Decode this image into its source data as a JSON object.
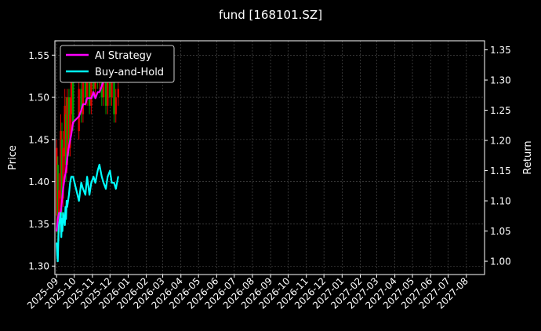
{
  "chart_data": {
    "type": "line",
    "title": "fund [168101.SZ]",
    "ylabel": "Price",
    "y2label": "Return",
    "ylim": [
      1.29,
      1.567
    ],
    "y2lim": [
      0.978,
      1.365
    ],
    "yticks": [
      "1.30",
      "1.35",
      "1.40",
      "1.45",
      "1.50",
      "1.55"
    ],
    "y2ticks": [
      "1.00",
      "1.05",
      "1.10",
      "1.15",
      "1.20",
      "1.25",
      "1.30",
      "1.35"
    ],
    "xlim": [
      "2025-08-29",
      "2027-09-01"
    ],
    "xticks": [
      "2025-09",
      "2025-10",
      "2025-11",
      "2025-12",
      "2026-01",
      "2026-02",
      "2026-03",
      "2026-04",
      "2026-05",
      "2026-06",
      "2026-07",
      "2026-08",
      "2026-09",
      "2026-10",
      "2026-11",
      "2026-12",
      "2027-01",
      "2027-02",
      "2027-03",
      "2027-04",
      "2027-05",
      "2027-06",
      "2027-07",
      "2027-08"
    ],
    "grid": true,
    "legend_position": "top-left",
    "candles": [
      {
        "date": "2025-09-01",
        "open": 1.36,
        "close": 1.44,
        "high": 1.45,
        "low": 1.34
      },
      {
        "date": "2025-09-03",
        "open": 1.42,
        "close": 1.34,
        "high": 1.43,
        "low": 1.32
      },
      {
        "date": "2025-09-05",
        "open": 1.34,
        "close": 1.39,
        "high": 1.41,
        "low": 1.33
      },
      {
        "date": "2025-09-08",
        "open": 1.38,
        "close": 1.46,
        "high": 1.48,
        "low": 1.37
      },
      {
        "date": "2025-09-10",
        "open": 1.45,
        "close": 1.38,
        "high": 1.47,
        "low": 1.36
      },
      {
        "date": "2025-09-12",
        "open": 1.38,
        "close": 1.44,
        "high": 1.46,
        "low": 1.37
      },
      {
        "date": "2025-09-15",
        "open": 1.43,
        "close": 1.49,
        "high": 1.51,
        "low": 1.41
      },
      {
        "date": "2025-09-17",
        "open": 1.48,
        "close": 1.42,
        "high": 1.5,
        "low": 1.4
      },
      {
        "date": "2025-09-19",
        "open": 1.42,
        "close": 1.5,
        "high": 1.51,
        "low": 1.41
      },
      {
        "date": "2025-09-22",
        "open": 1.5,
        "close": 1.44,
        "high": 1.51,
        "low": 1.43
      },
      {
        "date": "2025-09-24",
        "open": 1.44,
        "close": 1.48,
        "high": 1.5,
        "low": 1.43
      },
      {
        "date": "2025-09-26",
        "open": 1.48,
        "close": 1.52,
        "high": 1.53,
        "low": 1.46
      },
      {
        "date": "2025-09-29",
        "open": 1.52,
        "close": 1.47,
        "high": 1.53,
        "low": 1.46
      },
      {
        "date": "2025-10-09",
        "open": 1.46,
        "close": 1.51,
        "high": 1.52,
        "low": 1.45
      },
      {
        "date": "2025-10-13",
        "open": 1.51,
        "close": 1.48,
        "high": 1.52,
        "low": 1.47
      },
      {
        "date": "2025-10-16",
        "open": 1.48,
        "close": 1.53,
        "high": 1.54,
        "low": 1.47
      },
      {
        "date": "2025-10-20",
        "open": 1.53,
        "close": 1.5,
        "high": 1.54,
        "low": 1.49
      },
      {
        "date": "2025-10-23",
        "open": 1.5,
        "close": 1.52,
        "high": 1.53,
        "low": 1.49
      },
      {
        "date": "2025-10-27",
        "open": 1.52,
        "close": 1.49,
        "high": 1.53,
        "low": 1.48
      },
      {
        "date": "2025-10-30",
        "open": 1.49,
        "close": 1.53,
        "high": 1.55,
        "low": 1.48
      },
      {
        "date": "2025-11-03",
        "open": 1.53,
        "close": 1.51,
        "high": 1.54,
        "low": 1.5
      },
      {
        "date": "2025-11-06",
        "open": 1.51,
        "close": 1.53,
        "high": 1.54,
        "low": 1.5
      },
      {
        "date": "2025-11-10",
        "open": 1.53,
        "close": 1.52,
        "high": 1.55,
        "low": 1.51
      },
      {
        "date": "2025-11-13",
        "open": 1.52,
        "close": 1.54,
        "high": 1.55,
        "low": 1.51
      },
      {
        "date": "2025-11-17",
        "open": 1.54,
        "close": 1.5,
        "high": 1.55,
        "low": 1.49
      },
      {
        "date": "2025-11-20",
        "open": 1.5,
        "close": 1.52,
        "high": 1.53,
        "low": 1.49
      },
      {
        "date": "2025-11-24",
        "open": 1.52,
        "close": 1.49,
        "high": 1.53,
        "low": 1.48
      },
      {
        "date": "2025-11-27",
        "open": 1.49,
        "close": 1.53,
        "high": 1.54,
        "low": 1.48
      },
      {
        "date": "2025-12-01",
        "open": 1.53,
        "close": 1.5,
        "high": 1.54,
        "low": 1.49
      },
      {
        "date": "2025-12-04",
        "open": 1.5,
        "close": 1.52,
        "high": 1.53,
        "low": 1.49
      },
      {
        "date": "2025-12-08",
        "open": 1.52,
        "close": 1.48,
        "high": 1.52,
        "low": 1.47
      },
      {
        "date": "2025-12-11",
        "open": 1.48,
        "close": 1.5,
        "high": 1.51,
        "low": 1.47
      },
      {
        "date": "2025-12-15",
        "open": 1.5,
        "close": 1.51,
        "high": 1.52,
        "low": 1.49
      }
    ],
    "series": [
      {
        "name": "AI Strategy",
        "color": "#ff00ff",
        "axis": "right",
        "x": [
          "2025-09-01",
          "2025-09-03",
          "2025-09-05",
          "2025-09-08",
          "2025-09-10",
          "2025-09-12",
          "2025-09-15",
          "2025-09-17",
          "2025-09-19",
          "2025-09-22",
          "2025-09-24",
          "2025-09-26",
          "2025-09-29",
          "2025-10-09",
          "2025-10-13",
          "2025-10-16",
          "2025-10-20",
          "2025-10-23",
          "2025-10-27",
          "2025-10-30",
          "2025-11-03",
          "2025-11-06",
          "2025-11-10",
          "2025-11-13",
          "2025-11-17",
          "2025-11-20",
          "2025-11-24",
          "2025-11-27",
          "2025-12-01",
          "2025-12-04",
          "2025-12-08",
          "2025-12-11",
          "2025-12-15"
        ],
        "values": [
          1.05,
          1.07,
          1.08,
          1.08,
          1.1,
          1.12,
          1.14,
          1.15,
          1.17,
          1.19,
          1.2,
          1.21,
          1.23,
          1.24,
          1.25,
          1.26,
          1.26,
          1.27,
          1.27,
          1.27,
          1.28,
          1.27,
          1.28,
          1.28,
          1.29,
          1.3,
          1.3,
          1.31,
          1.32,
          1.31,
          1.32,
          1.33,
          1.33
        ]
      },
      {
        "name": "Buy-and-Hold",
        "color": "#00ffff",
        "axis": "right",
        "x": [
          "2025-09-01",
          "2025-09-02",
          "2025-09-03",
          "2025-09-04",
          "2025-09-05",
          "2025-09-08",
          "2025-09-09",
          "2025-09-10",
          "2025-09-11",
          "2025-09-12",
          "2025-09-15",
          "2025-09-16",
          "2025-09-17",
          "2025-09-18",
          "2025-09-19",
          "2025-09-22",
          "2025-09-24",
          "2025-09-26",
          "2025-09-29",
          "2025-10-09",
          "2025-10-13",
          "2025-10-16",
          "2025-10-20",
          "2025-10-23",
          "2025-10-27",
          "2025-10-30",
          "2025-11-03",
          "2025-11-06",
          "2025-11-10",
          "2025-11-13",
          "2025-11-17",
          "2025-11-20",
          "2025-11-24",
          "2025-11-27",
          "2025-12-01",
          "2025-12-04",
          "2025-12-08",
          "2025-12-11",
          "2025-12-15"
        ],
        "values": [
          1.03,
          1.01,
          1.0,
          1.04,
          1.06,
          1.08,
          1.04,
          1.07,
          1.05,
          1.08,
          1.06,
          1.09,
          1.07,
          1.1,
          1.09,
          1.11,
          1.13,
          1.14,
          1.14,
          1.1,
          1.13,
          1.12,
          1.11,
          1.14,
          1.11,
          1.13,
          1.14,
          1.13,
          1.15,
          1.16,
          1.14,
          1.13,
          1.12,
          1.14,
          1.15,
          1.13,
          1.13,
          1.12,
          1.14
        ]
      }
    ]
  }
}
